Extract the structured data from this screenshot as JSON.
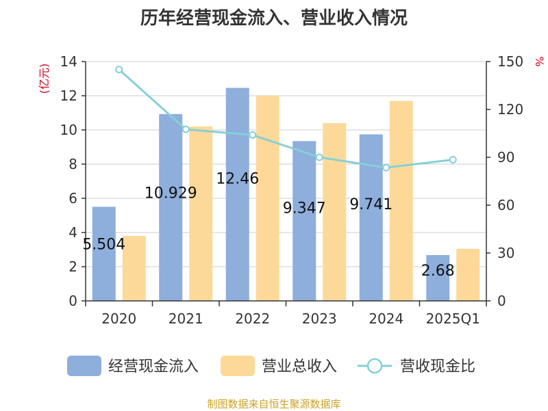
{
  "chart_data": {
    "type": "bar",
    "title": "历年经营现金流入、营业收入情况",
    "categories": [
      "2020",
      "2021",
      "2022",
      "2023",
      "2024",
      "2025Q1"
    ],
    "series": [
      {
        "name": "经营现金流入",
        "kind": "bar",
        "axis": "left",
        "color": "#8eaedc",
        "values": [
          5.504,
          10.929,
          12.46,
          9.347,
          9.741,
          2.68
        ],
        "labels": [
          "5.504",
          "10.929",
          "12.46",
          "9.347",
          "9.741",
          "2.68"
        ]
      },
      {
        "name": "营业总收入",
        "kind": "bar",
        "axis": "left",
        "color": "#fdd999",
        "values": [
          3.8,
          10.2,
          12.0,
          10.4,
          11.7,
          3.05
        ]
      },
      {
        "name": "营收现金比",
        "kind": "line",
        "axis": "right",
        "color": "#86d0d6",
        "values": [
          145,
          107.5,
          104,
          90,
          83.5,
          88.5
        ]
      }
    ],
    "ylim_left": [
      0,
      14
    ],
    "yticks_left": [
      0,
      2,
      4,
      6,
      8,
      10,
      12,
      14
    ],
    "ylabel_left": "(亿元)",
    "ylim_right": [
      0,
      150
    ],
    "yticks_right": [
      0,
      30,
      60,
      90,
      120,
      150
    ],
    "ylabel_right": "%",
    "grid": true,
    "legend": "bottom"
  },
  "source": "制图数据来自恒生聚源数据库"
}
